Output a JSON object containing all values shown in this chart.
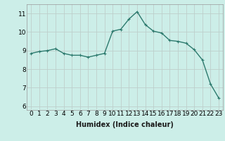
{
  "x": [
    0,
    1,
    2,
    3,
    4,
    5,
    6,
    7,
    8,
    9,
    10,
    11,
    12,
    13,
    14,
    15,
    16,
    17,
    18,
    19,
    20,
    21,
    22,
    23
  ],
  "y": [
    8.85,
    8.95,
    9.0,
    9.1,
    8.85,
    8.75,
    8.75,
    8.65,
    8.75,
    8.85,
    10.05,
    10.15,
    10.7,
    11.1,
    10.4,
    10.05,
    9.95,
    9.55,
    9.5,
    9.4,
    9.05,
    8.5,
    7.2,
    6.45
  ],
  "line_color": "#2d7a6e",
  "marker": "+",
  "marker_size": 3,
  "bg_color": "#cceee8",
  "grid_color_teal": "#aad8d2",
  "grid_color_red": "#e8c0c0",
  "xlabel": "Humidex (Indice chaleur)",
  "xlim": [
    -0.5,
    23.5
  ],
  "ylim": [
    5.8,
    11.5
  ],
  "yticks": [
    6,
    7,
    8,
    9,
    10,
    11
  ],
  "xticks": [
    0,
    1,
    2,
    3,
    4,
    5,
    6,
    7,
    8,
    9,
    10,
    11,
    12,
    13,
    14,
    15,
    16,
    17,
    18,
    19,
    20,
    21,
    22,
    23
  ],
  "xlabel_fontsize": 7,
  "tick_fontsize": 6.5,
  "line_width": 1.0,
  "marker_edge_width": 0.8
}
